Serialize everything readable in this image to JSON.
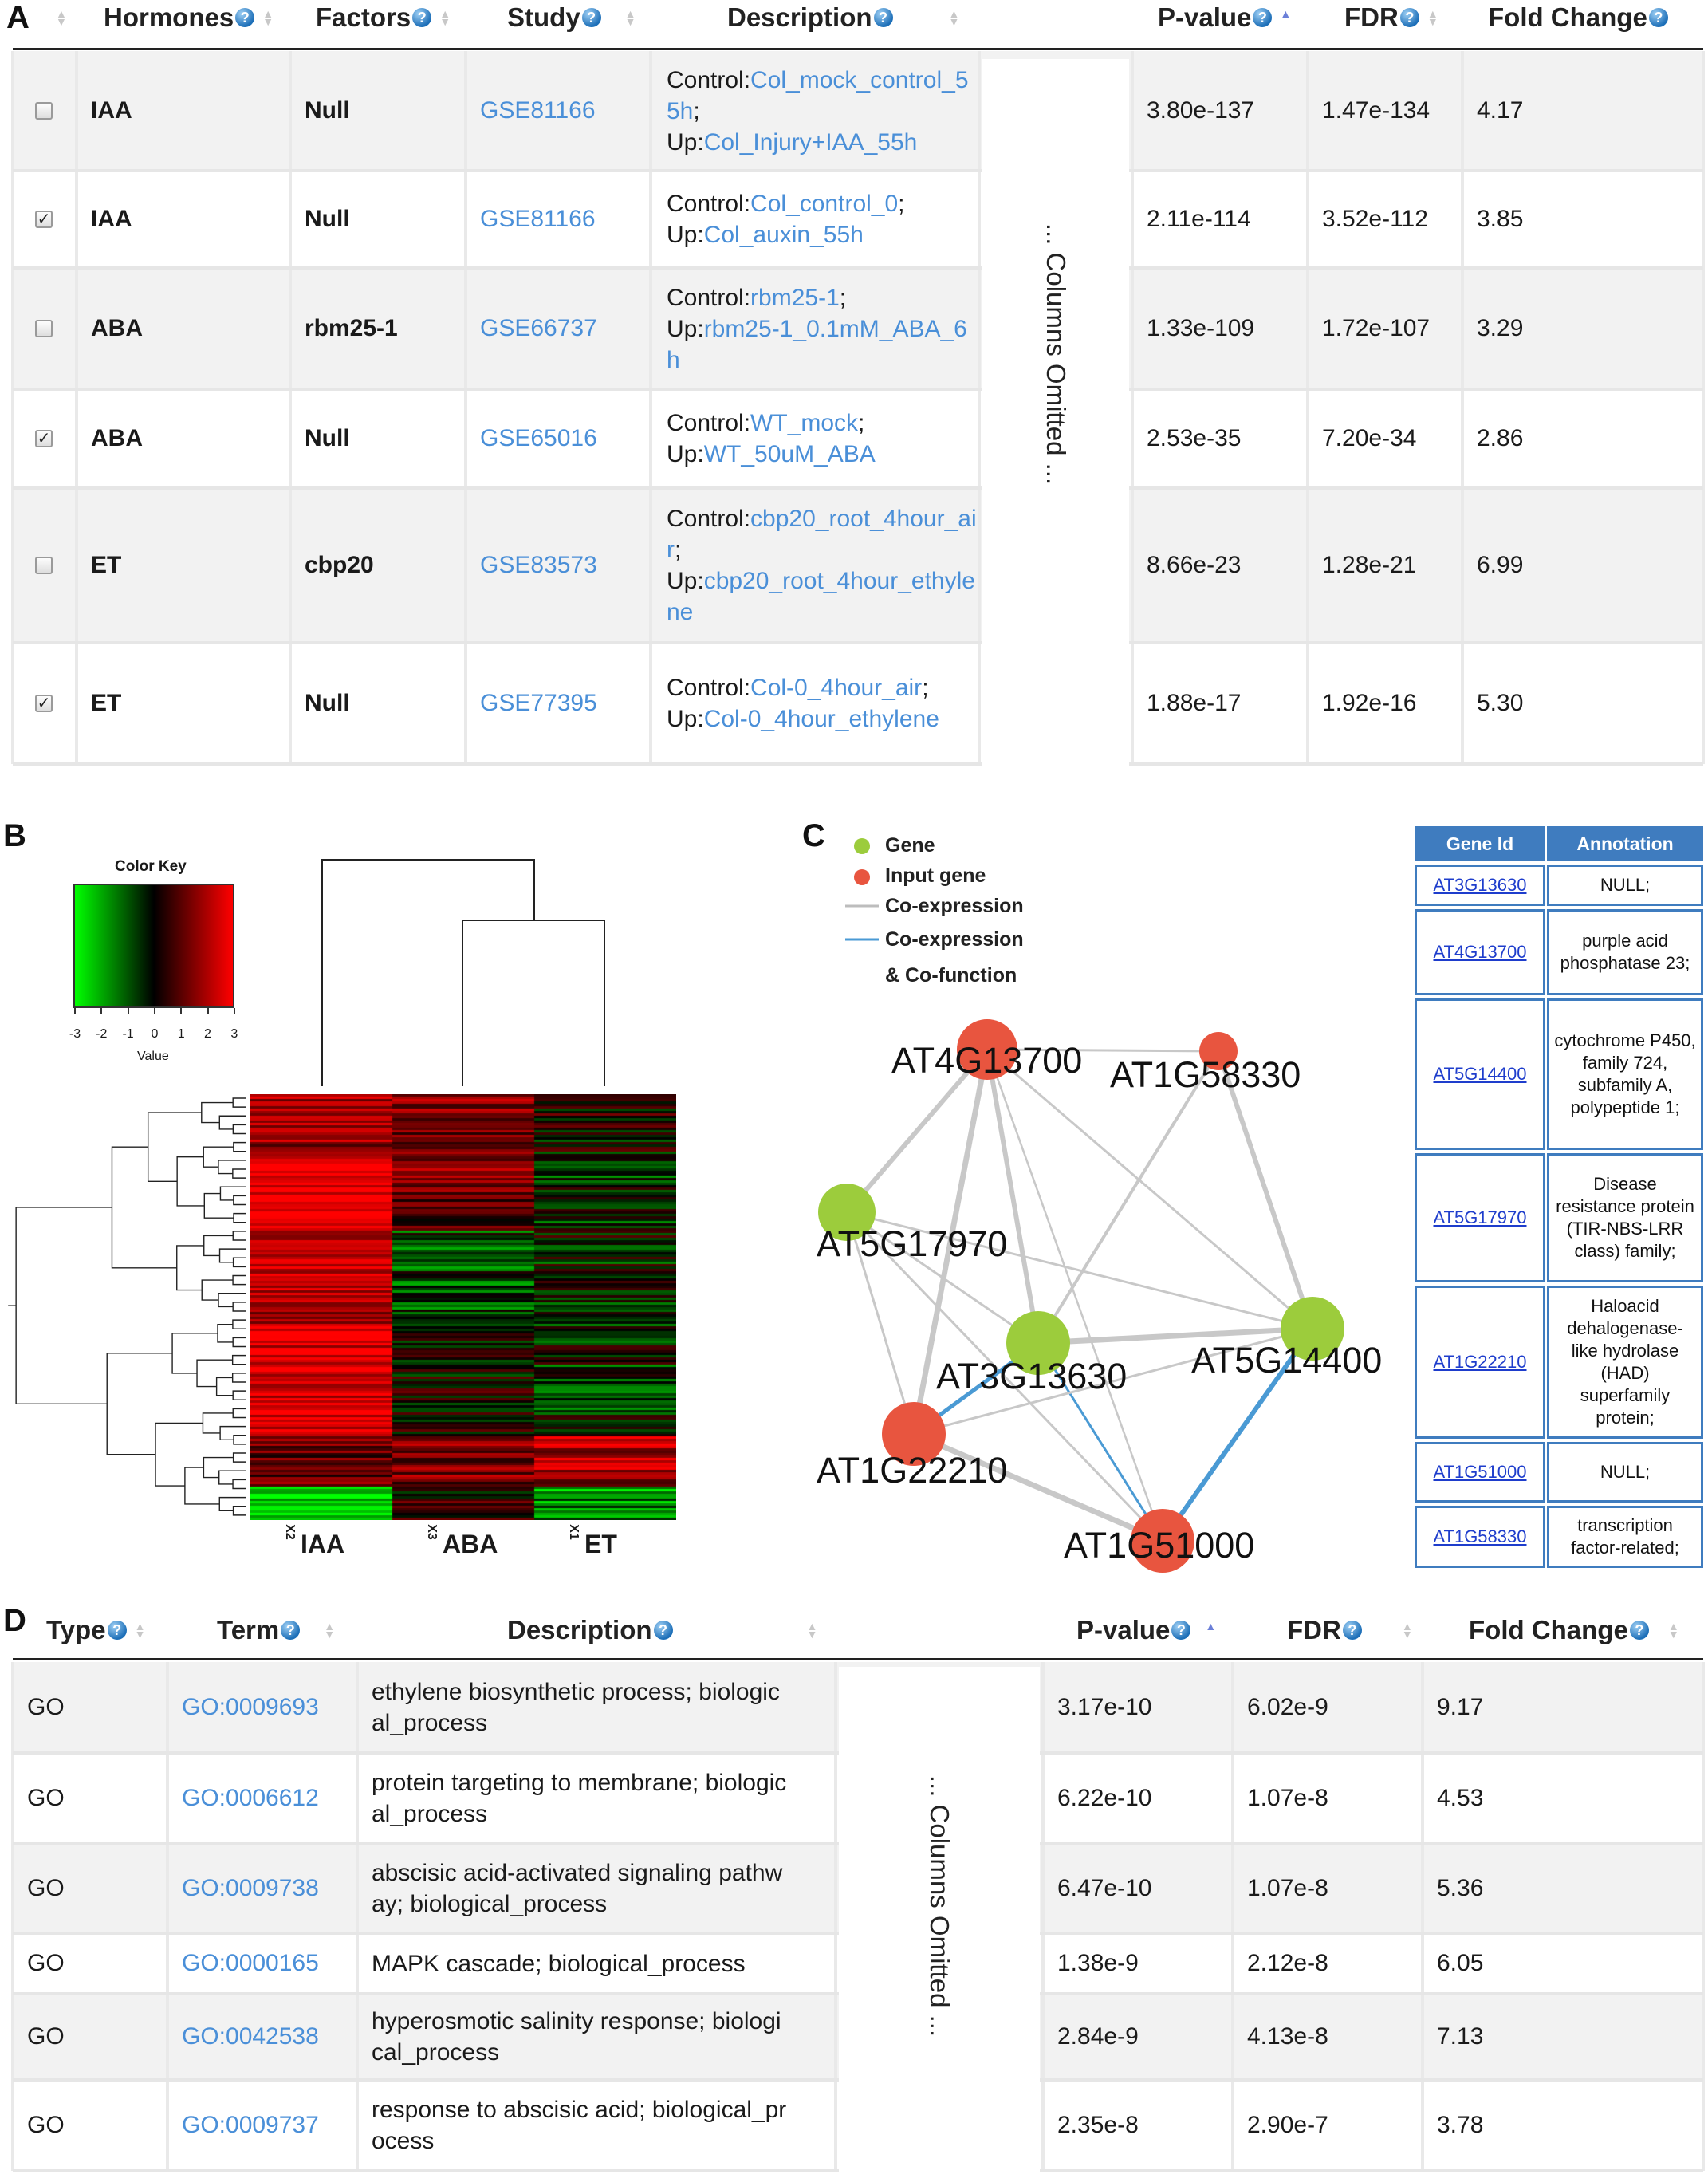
{
  "panel_letters": {
    "a": "A",
    "b": "B",
    "c": "C",
    "d": "D"
  },
  "tableA": {
    "headers": [
      "Hormones",
      "Factors",
      "Study",
      "Description",
      "P-value",
      "FDR",
      "Fold Change"
    ],
    "omitted": "... Columns Omitted ...",
    "rows": [
      {
        "checked": false,
        "hormone": "IAA",
        "factor": "Null",
        "study": "GSE81166",
        "control": "Col_mock_control_55h",
        "up": "Col_Injury+IAA_55h",
        "pvalue": "3.80e-137",
        "fdr": "1.47e-134",
        "fold": "4.17"
      },
      {
        "checked": true,
        "hormone": "IAA",
        "factor": "Null",
        "study": "GSE81166",
        "control": "Col_control_0",
        "up": "Col_auxin_55h",
        "pvalue": "2.11e-114",
        "fdr": "3.52e-112",
        "fold": "3.85"
      },
      {
        "checked": false,
        "hormone": "ABA",
        "factor": "rbm25-1",
        "study": "GSE66737",
        "control": "rbm25-1",
        "up": "rbm25-1_0.1mM_ABA_6h",
        "pvalue": "1.33e-109",
        "fdr": "1.72e-107",
        "fold": "3.29"
      },
      {
        "checked": true,
        "hormone": "ABA",
        "factor": "Null",
        "study": "GSE65016",
        "control": "WT_mock",
        "up": "WT_50uM_ABA",
        "pvalue": "2.53e-35",
        "fdr": "7.20e-34",
        "fold": "2.86"
      },
      {
        "checked": false,
        "hormone": "ET",
        "factor": "cbp20",
        "study": "GSE83573",
        "control": "cbp20_root_4hour_air",
        "up": "cbp20_root_4hour_ethylene",
        "pvalue": "8.66e-23",
        "fdr": "1.28e-21",
        "fold": "6.99"
      },
      {
        "checked": true,
        "hormone": "ET",
        "factor": "Null",
        "study": "GSE77395",
        "control": "Col-0_4hour_air",
        "up": "Col-0_4hour_ethylene",
        "pvalue": "1.88e-17",
        "fdr": "1.92e-16",
        "fold": "5.30"
      }
    ],
    "control_prefix": "Control:",
    "up_prefix": "Up:"
  },
  "heatmap": {
    "color_key_title": "Color Key",
    "color_key_xlabel": "Value",
    "color_key_ticks": [
      "-3",
      "-2",
      "-1",
      "0",
      "1",
      "2",
      "3"
    ],
    "columns": [
      "IAA",
      "ABA",
      "ET"
    ],
    "column_ticks": [
      "X2",
      "X3",
      "X1"
    ],
    "colors": {
      "low": "#00ff00",
      "mid": "#000000",
      "high": "#ff0000"
    }
  },
  "network": {
    "legend": {
      "gene": "Gene",
      "input_gene": "Input gene",
      "coexpression": "Co-expression",
      "coexpression_cofunction_1": "Co-expression",
      "coexpression_cofunction_2": "& Co-function"
    },
    "nodes": [
      {
        "id": "AT4G13700",
        "type": "input"
      },
      {
        "id": "AT1G58330",
        "type": "input"
      },
      {
        "id": "AT5G17970",
        "type": "gene"
      },
      {
        "id": "AT3G13630",
        "type": "gene"
      },
      {
        "id": "AT5G14400",
        "type": "gene"
      },
      {
        "id": "AT1G22210",
        "type": "input"
      },
      {
        "id": "AT1G51000",
        "type": "input"
      }
    ],
    "colors": {
      "gene": "#9ccc3c",
      "input": "#e8553f",
      "coexp": "#c8c8c8",
      "cofunc": "#4a9ad4"
    }
  },
  "annotation_table": {
    "headers": [
      "Gene Id",
      "Annotation"
    ],
    "rows": [
      {
        "gene": "AT3G13630",
        "annotation": "NULL;"
      },
      {
        "gene": "AT4G13700",
        "annotation": "purple acid phosphatase 23;"
      },
      {
        "gene": "AT5G14400",
        "annotation": "cytochrome P450, family 724, subfamily A, polypeptide 1;"
      },
      {
        "gene": "AT5G17970",
        "annotation": "Disease resistance protein (TIR-NBS-LRR class) family;"
      },
      {
        "gene": "AT1G22210",
        "annotation": "Haloacid dehalogenase-like hydrolase (HAD) superfamily protein;"
      },
      {
        "gene": "AT1G51000",
        "annotation": "NULL;"
      },
      {
        "gene": "AT1G58330",
        "annotation": "transcription factor-related;"
      }
    ]
  },
  "tableD": {
    "headers": [
      "Type",
      "Term",
      "Description",
      "P-value",
      "FDR",
      "Fold Change"
    ],
    "omitted": "... Columns Omitted ...",
    "rows": [
      {
        "type": "GO",
        "term": "GO:0009693",
        "desc1": "ethylene biosynthetic process; biologic",
        "desc2": "al_process",
        "pvalue": "3.17e-10",
        "fdr": "6.02e-9",
        "fold": "9.17"
      },
      {
        "type": "GO",
        "term": "GO:0006612",
        "desc1": "protein targeting to membrane; biologic",
        "desc2": "al_process",
        "pvalue": "6.22e-10",
        "fdr": "1.07e-8",
        "fold": "4.53"
      },
      {
        "type": "GO",
        "term": "GO:0009738",
        "desc1": "abscisic acid-activated signaling pathw",
        "desc2": "ay; biological_process",
        "pvalue": "6.47e-10",
        "fdr": "1.07e-8",
        "fold": "5.36"
      },
      {
        "type": "GO",
        "term": "GO:0000165",
        "desc1": "MAPK cascade; biological_process",
        "desc2": "",
        "pvalue": "1.38e-9",
        "fdr": "2.12e-8",
        "fold": "6.05"
      },
      {
        "type": "GO",
        "term": "GO:0042538",
        "desc1": "hyperosmotic salinity response; biologi",
        "desc2": "cal_process",
        "pvalue": "2.84e-9",
        "fdr": "4.13e-8",
        "fold": "7.13"
      },
      {
        "type": "GO",
        "term": "GO:0009737",
        "desc1": "response to abscisic acid; biological_pr",
        "desc2": "ocess",
        "pvalue": "2.35e-8",
        "fdr": "2.90e-7",
        "fold": "3.78"
      }
    ]
  }
}
